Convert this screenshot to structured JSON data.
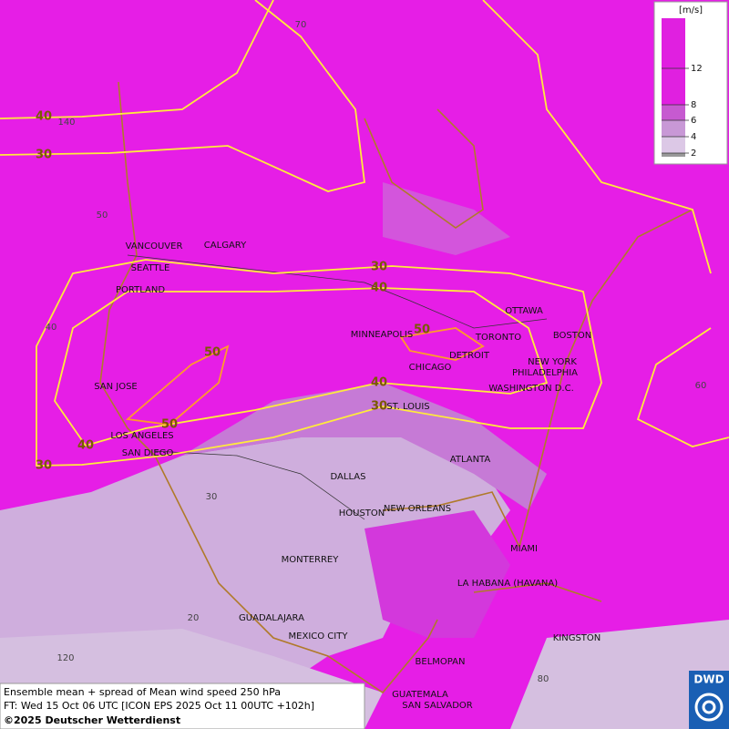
{
  "colorbar": {
    "unit": "[m/s]",
    "ticks": [
      12,
      8,
      6,
      4,
      2
    ]
  },
  "cities": [
    "VANCOUVER",
    "CALGARY",
    "SEATTLE",
    "PORTLAND",
    "MINNEAPOLIS",
    "TORONTO",
    "OTTAWA",
    "BOSTON",
    "DETROIT",
    "CHICAGO",
    "NEW YORK",
    "PHILADELPHIA",
    "WASHINGTON D.C.",
    "SAN JOSE",
    "ST. LOUIS",
    "LOS ANGELES",
    "SAN DIEGO",
    "ATLANTA",
    "DALLAS",
    "HOUSTON",
    "NEW ORLEANS",
    "MIAMI",
    "MONTERREY",
    "LA HABANA (HAVANA)",
    "GUADALAJARA",
    "MEXICO CITY",
    "KINGSTON",
    "BELMOPAN",
    "GUATEMALA",
    "SAN SALVADOR"
  ],
  "grid_labels": [
    70,
    140,
    50,
    40,
    60,
    30,
    20,
    120,
    80
  ],
  "contour_labels": [
    40,
    30,
    30,
    40,
    50,
    50,
    40,
    30,
    50,
    40,
    30
  ],
  "footer": {
    "lines": [
      "Ensemble mean + spread of Mean wind speed 250 hPa",
      "FT: Wed 15 Oct 06 UTC [ICON EPS 2025 Oct 11 00UTC +102h]",
      "©2025 Deutscher Wetterdienst"
    ]
  },
  "logo": "DWD"
}
